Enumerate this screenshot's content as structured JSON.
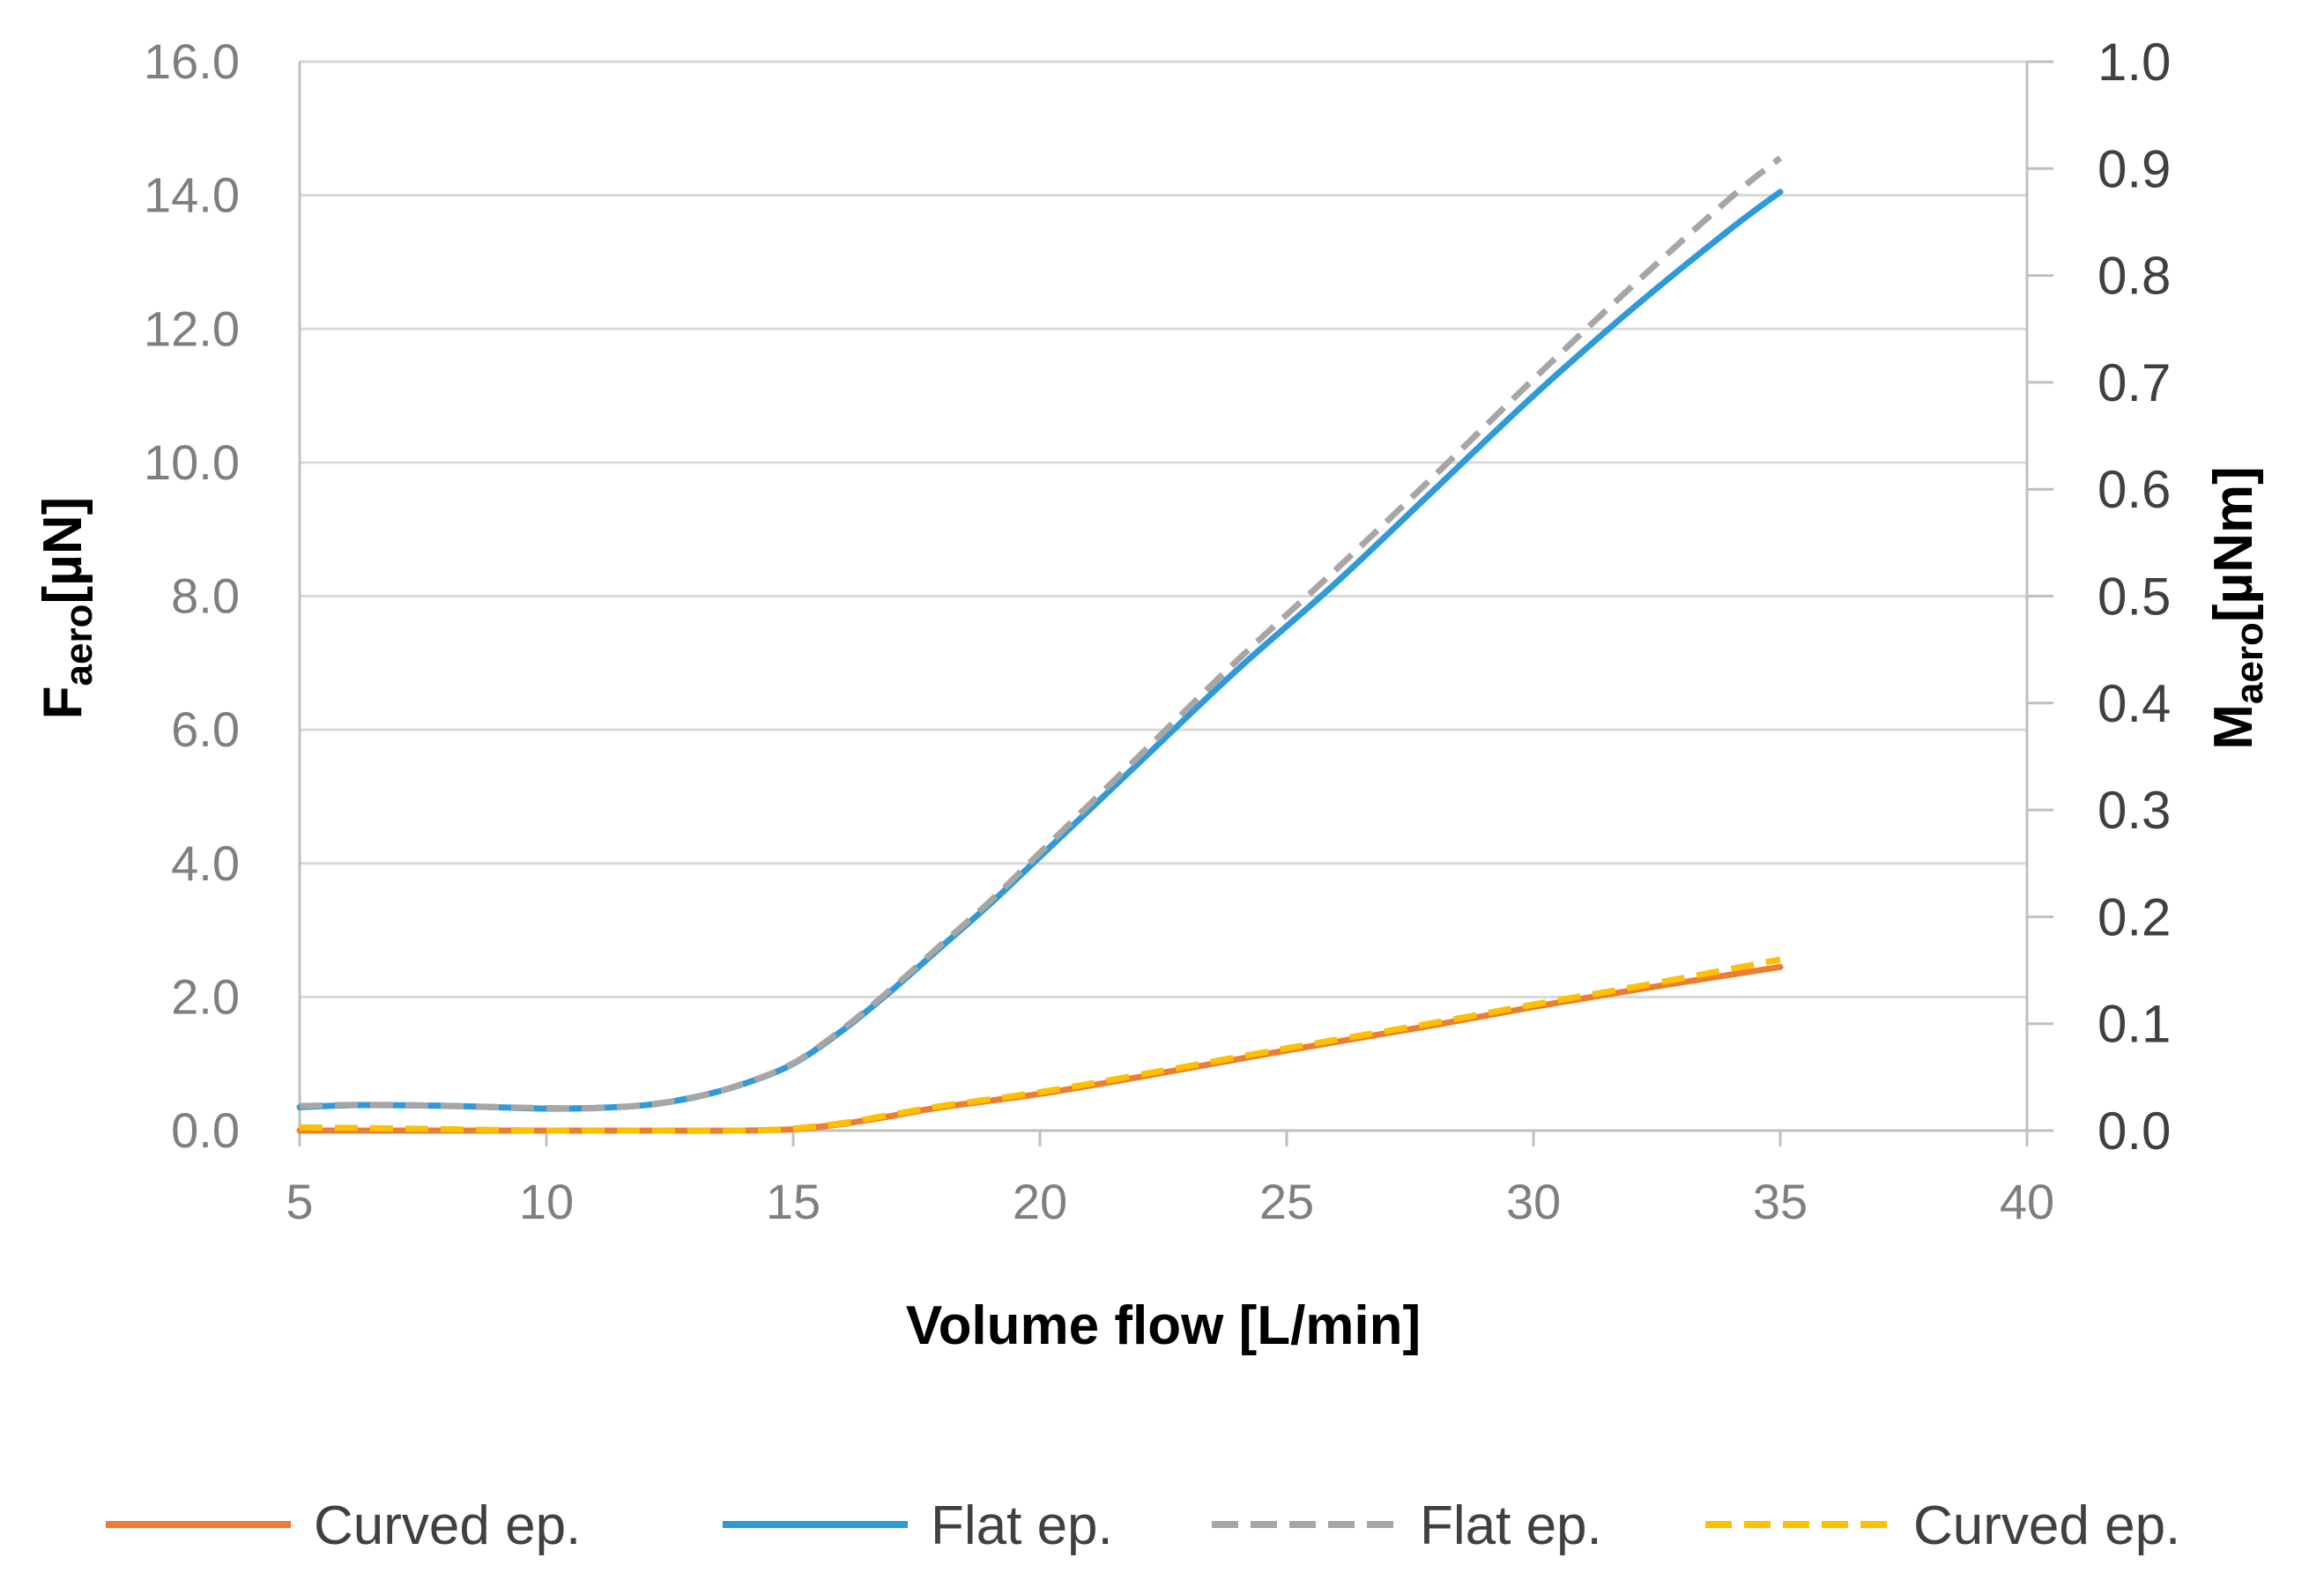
{
  "chart_data": {
    "type": "line",
    "title": "",
    "xlabel": "Volume flow [L/min]",
    "ylabel_left": {
      "main": "F",
      "sub": "aero",
      "unit": "[µN]"
    },
    "ylabel_right": {
      "main": "M",
      "sub": "aero",
      "unit": "[µNm]"
    },
    "xlim": [
      5,
      40
    ],
    "ylim_left": [
      0,
      16
    ],
    "ylim_right": [
      0,
      1.0
    ],
    "x_ticks": [
      "5",
      "10",
      "15",
      "20",
      "25",
      "30",
      "35",
      "40"
    ],
    "y_left_ticks": [
      "0.0",
      "2.0",
      "4.0",
      "6.0",
      "8.0",
      "10.0",
      "12.0",
      "14.0",
      "16.0"
    ],
    "y_right_ticks": [
      "0.0",
      "0.1",
      "0.2",
      "0.3",
      "0.4",
      "0.5",
      "0.6",
      "0.7",
      "0.8",
      "0.9",
      "1.0"
    ],
    "grid": true,
    "legend_position": "bottom",
    "series": [
      {
        "name": "Curved ep.",
        "axis": "left",
        "color": "#ed7d31",
        "style": "solid",
        "x": [
          5,
          7,
          10,
          12,
          14,
          15,
          16,
          17,
          18,
          20,
          22,
          25,
          28,
          30,
          32,
          35
        ],
        "y": [
          0.0,
          0.0,
          0.0,
          0.0,
          0.0,
          0.02,
          0.1,
          0.22,
          0.35,
          0.55,
          0.8,
          1.2,
          1.58,
          1.85,
          2.1,
          2.45
        ]
      },
      {
        "name": "Flat ep.",
        "axis": "left",
        "color": "#2e9ad9",
        "style": "solid",
        "x": [
          5,
          6,
          7,
          8,
          9,
          10,
          11,
          12,
          13,
          14,
          15,
          16,
          17,
          18,
          19,
          20,
          22,
          24,
          26,
          28,
          30,
          32,
          34,
          35
        ],
        "y": [
          0.35,
          0.38,
          0.38,
          0.37,
          0.35,
          0.33,
          0.34,
          0.38,
          0.5,
          0.7,
          1.0,
          1.5,
          2.1,
          2.75,
          3.4,
          4.1,
          5.5,
          6.9,
          8.2,
          9.6,
          11.0,
          12.3,
          13.5,
          14.05
        ]
      },
      {
        "name": "Flat ep.",
        "axis": "right",
        "color": "#a6a6a6",
        "style": "dashed",
        "x": [
          5,
          6,
          7,
          8,
          9,
          10,
          11,
          12,
          13,
          14,
          15,
          16,
          17,
          18,
          19,
          20,
          22,
          24,
          26,
          28,
          30,
          32,
          34,
          35
        ],
        "y": [
          0.023,
          0.024,
          0.024,
          0.023,
          0.022,
          0.021,
          0.021,
          0.024,
          0.031,
          0.044,
          0.063,
          0.095,
          0.133,
          0.174,
          0.215,
          0.26,
          0.35,
          0.44,
          0.525,
          0.613,
          0.703,
          0.79,
          0.873,
          0.91
        ]
      },
      {
        "name": "Curved ep.",
        "axis": "right",
        "color": "#ffc000",
        "style": "dashed",
        "x": [
          5,
          7,
          10,
          12,
          14,
          15,
          16,
          17,
          18,
          20,
          22,
          25,
          28,
          30,
          32,
          35
        ],
        "y": [
          0.003,
          0.002,
          0.0,
          0.0,
          0.0,
          0.002,
          0.007,
          0.015,
          0.023,
          0.036,
          0.052,
          0.077,
          0.101,
          0.118,
          0.134,
          0.16
        ]
      }
    ]
  },
  "legend": {
    "items": [
      {
        "label": "Curved ep.",
        "color": "#ed7d31",
        "style": "solid"
      },
      {
        "label": "Flat ep.",
        "color": "#2e9ad9",
        "style": "solid"
      },
      {
        "label": "Flat ep.",
        "color": "#a6a6a6",
        "style": "dashed"
      },
      {
        "label": "Curved ep.",
        "color": "#ffc000",
        "style": "dashed"
      }
    ]
  },
  "colors": {
    "grid": "#d9d9d9",
    "axis": "#bfbfbf"
  }
}
